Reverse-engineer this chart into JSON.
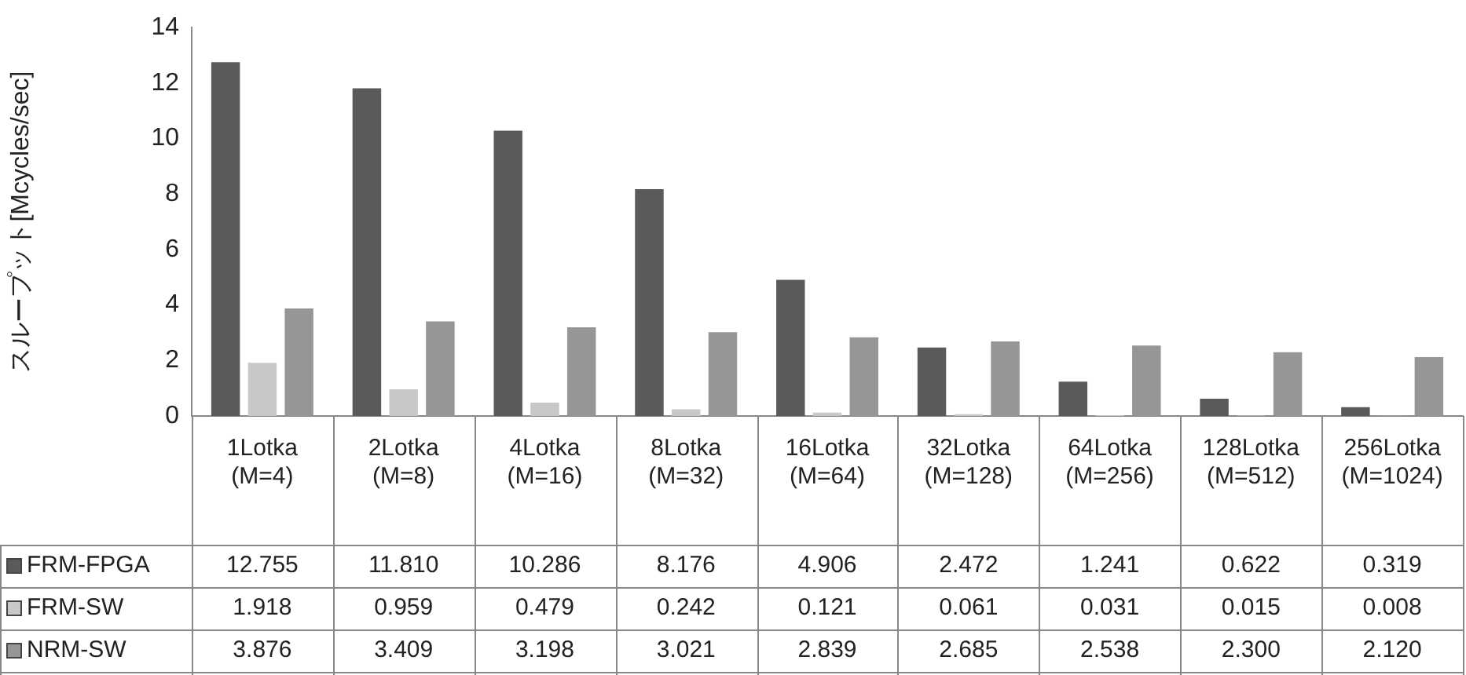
{
  "chart_data": {
    "type": "bar",
    "ylabel": "スループット[Mcycles/sec]",
    "categories": [
      "1Lotka (M=4)",
      "2Lotka (M=8)",
      "4Lotka (M=16)",
      "8Lotka (M=32)",
      "16Lotka (M=64)",
      "32Lotka (M=128)",
      "64Lotka (M=256)",
      "128Lotka (M=512)",
      "256Lotka (M=1024)"
    ],
    "ylim": [
      0,
      14
    ],
    "yticks": [
      0,
      2,
      4,
      6,
      8,
      10,
      12,
      14
    ],
    "grid": false,
    "legend": "bottom",
    "series": [
      {
        "name": "FRM-FPGA",
        "color": "#5a5a5a",
        "values": [
          12.755,
          11.81,
          10.286,
          8.176,
          4.906,
          2.472,
          1.241,
          0.622,
          0.319
        ],
        "value_labels": [
          "12.755",
          "11.810",
          "10.286",
          "8.176",
          "4.906",
          "2.472",
          "1.241",
          "0.622",
          "0.319"
        ]
      },
      {
        "name": "FRM-SW",
        "color": "#c8c8c8",
        "values": [
          1.918,
          0.959,
          0.479,
          0.242,
          0.121,
          0.061,
          0.031,
          0.015,
          0.008
        ],
        "value_labels": [
          "1.918",
          "0.959",
          "0.479",
          "0.242",
          "0.121",
          "0.061",
          "0.031",
          "0.015",
          "0.008"
        ]
      },
      {
        "name": "NRM-SW",
        "color": "#969696",
        "values": [
          3.876,
          3.409,
          3.198,
          3.021,
          2.839,
          2.685,
          2.538,
          2.3,
          2.12
        ],
        "value_labels": [
          "3.876",
          "3.409",
          "3.198",
          "3.021",
          "2.839",
          "2.685",
          "2.538",
          "2.300",
          "2.120"
        ]
      }
    ]
  }
}
